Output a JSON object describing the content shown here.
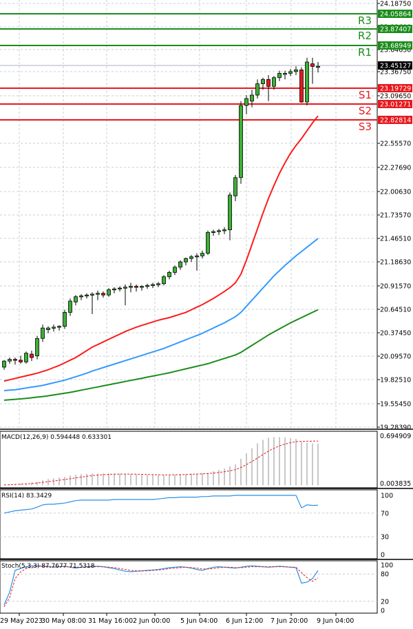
{
  "chart_data": {
    "type": "candlestick",
    "price_axis": {
      "tick_labels": [
        "24.18750",
        "23.91600",
        "23.64630",
        "23.36750",
        "23.09650",
        "22.55570",
        "22.27690",
        "22.00630",
        "21.73570",
        "21.46510",
        "21.18630",
        "20.91570",
        "20.64510",
        "20.37450",
        "20.09570",
        "19.82510",
        "19.55450",
        "19.28390"
      ],
      "current_price": "23.45127"
    },
    "time_axis": [
      "29 May 2023",
      "30 May 08:00",
      "31 May 16:00",
      "2 Jun 00:00",
      "5 Jun 04:00",
      "6 Jun 12:00",
      "7 Jun 20:00",
      "9 Jun 04:00"
    ],
    "levels": [
      {
        "name": "R3",
        "value": "24.05864",
        "kind": "resistance",
        "price": 24.05864
      },
      {
        "name": "R2",
        "value": "23.87407",
        "kind": "resistance",
        "price": 23.87407
      },
      {
        "name": "R1",
        "value": "23.68949",
        "kind": "resistance",
        "price": 23.68949
      },
      {
        "name": "S1",
        "value": "23.19729",
        "kind": "support",
        "price": 23.19729
      },
      {
        "name": "S2",
        "value": "23.01271",
        "kind": "support",
        "price": 23.01271
      },
      {
        "name": "S3",
        "value": "22.82814",
        "kind": "support",
        "price": 22.82814
      }
    ],
    "candles": [
      {
        "o": 19.99,
        "h": 20.07,
        "l": 19.96,
        "c": 20.06
      },
      {
        "o": 20.06,
        "h": 20.1,
        "l": 20.03,
        "c": 20.08
      },
      {
        "o": 20.08,
        "h": 20.1,
        "l": 20.02,
        "c": 20.07
      },
      {
        "o": 20.07,
        "h": 20.12,
        "l": 20.03,
        "c": 20.05
      },
      {
        "o": 20.05,
        "h": 20.17,
        "l": 20.03,
        "c": 20.15
      },
      {
        "o": 20.14,
        "h": 20.18,
        "l": 20.06,
        "c": 20.1
      },
      {
        "o": 20.12,
        "h": 20.35,
        "l": 20.08,
        "c": 20.32
      },
      {
        "o": 20.32,
        "h": 20.48,
        "l": 20.28,
        "c": 20.44
      },
      {
        "o": 20.42,
        "h": 20.46,
        "l": 20.38,
        "c": 20.44
      },
      {
        "o": 20.44,
        "h": 20.48,
        "l": 20.4,
        "c": 20.45
      },
      {
        "o": 20.45,
        "h": 20.47,
        "l": 20.41,
        "c": 20.46
      },
      {
        "o": 20.46,
        "h": 20.65,
        "l": 20.43,
        "c": 20.62
      },
      {
        "o": 20.62,
        "h": 20.78,
        "l": 20.58,
        "c": 20.75
      },
      {
        "o": 20.74,
        "h": 20.82,
        "l": 20.7,
        "c": 20.8
      },
      {
        "o": 20.8,
        "h": 20.83,
        "l": 20.76,
        "c": 20.81
      },
      {
        "o": 20.81,
        "h": 20.84,
        "l": 20.78,
        "c": 20.82
      },
      {
        "o": 20.82,
        "h": 20.85,
        "l": 20.6,
        "c": 20.83
      },
      {
        "o": 20.83,
        "h": 20.87,
        "l": 20.76,
        "c": 20.84
      },
      {
        "o": 20.84,
        "h": 20.86,
        "l": 20.79,
        "c": 20.82
      },
      {
        "o": 20.82,
        "h": 20.9,
        "l": 20.8,
        "c": 20.88
      },
      {
        "o": 20.88,
        "h": 20.91,
        "l": 20.84,
        "c": 20.89
      },
      {
        "o": 20.89,
        "h": 20.92,
        "l": 20.86,
        "c": 20.9
      },
      {
        "o": 20.9,
        "h": 20.94,
        "l": 20.7,
        "c": 20.91
      },
      {
        "o": 20.91,
        "h": 20.96,
        "l": 20.85,
        "c": 20.92
      },
      {
        "o": 20.92,
        "h": 20.94,
        "l": 20.86,
        "c": 20.91
      },
      {
        "o": 20.91,
        "h": 20.93,
        "l": 20.87,
        "c": 20.92
      },
      {
        "o": 20.92,
        "h": 20.95,
        "l": 20.89,
        "c": 20.93
      },
      {
        "o": 20.93,
        "h": 20.96,
        "l": 20.9,
        "c": 20.94
      },
      {
        "o": 20.94,
        "h": 20.97,
        "l": 20.91,
        "c": 20.95
      },
      {
        "o": 20.95,
        "h": 21.05,
        "l": 20.93,
        "c": 21.03
      },
      {
        "o": 21.03,
        "h": 21.1,
        "l": 21.0,
        "c": 21.08
      },
      {
        "o": 21.08,
        "h": 21.16,
        "l": 21.05,
        "c": 21.14
      },
      {
        "o": 21.14,
        "h": 21.22,
        "l": 21.11,
        "c": 21.2
      },
      {
        "o": 21.2,
        "h": 21.25,
        "l": 21.16,
        "c": 21.24
      },
      {
        "o": 21.24,
        "h": 21.28,
        "l": 21.2,
        "c": 21.26
      },
      {
        "o": 21.26,
        "h": 21.3,
        "l": 21.1,
        "c": 21.27
      },
      {
        "o": 21.27,
        "h": 21.33,
        "l": 21.24,
        "c": 21.3
      },
      {
        "o": 21.3,
        "h": 21.56,
        "l": 21.28,
        "c": 21.54
      },
      {
        "o": 21.54,
        "h": 21.57,
        "l": 21.5,
        "c": 21.55
      },
      {
        "o": 21.55,
        "h": 21.58,
        "l": 21.51,
        "c": 21.56
      },
      {
        "o": 21.56,
        "h": 21.6,
        "l": 21.52,
        "c": 21.57
      },
      {
        "o": 21.57,
        "h": 22.0,
        "l": 21.45,
        "c": 21.97
      },
      {
        "o": 21.96,
        "h": 22.2,
        "l": 21.9,
        "c": 22.17
      },
      {
        "o": 22.17,
        "h": 23.05,
        "l": 22.1,
        "c": 23.0
      },
      {
        "o": 23.0,
        "h": 23.12,
        "l": 22.9,
        "c": 23.08
      },
      {
        "o": 23.05,
        "h": 23.18,
        "l": 22.98,
        "c": 23.12
      },
      {
        "o": 23.12,
        "h": 23.3,
        "l": 23.08,
        "c": 23.25
      },
      {
        "o": 23.25,
        "h": 23.32,
        "l": 23.18,
        "c": 23.3
      },
      {
        "o": 23.3,
        "h": 23.35,
        "l": 23.05,
        "c": 23.22
      },
      {
        "o": 23.22,
        "h": 23.34,
        "l": 23.18,
        "c": 23.32
      },
      {
        "o": 23.32,
        "h": 23.4,
        "l": 23.28,
        "c": 23.37
      },
      {
        "o": 23.36,
        "h": 23.4,
        "l": 23.3,
        "c": 23.37
      },
      {
        "o": 23.37,
        "h": 23.42,
        "l": 23.34,
        "c": 23.39
      },
      {
        "o": 23.39,
        "h": 23.45,
        "l": 23.35,
        "c": 23.41
      },
      {
        "o": 23.41,
        "h": 23.44,
        "l": 23.03,
        "c": 23.04
      },
      {
        "o": 23.04,
        "h": 23.55,
        "l": 23.0,
        "c": 23.5
      },
      {
        "o": 23.48,
        "h": 23.55,
        "l": 23.25,
        "c": 23.45
      },
      {
        "o": 23.45,
        "h": 23.5,
        "l": 23.38,
        "c": 23.45
      }
    ],
    "moving_averages": [
      {
        "color": "#ff1a1a",
        "values": [
          19.83,
          19.845,
          19.86,
          19.875,
          19.89,
          19.905,
          19.92,
          19.94,
          19.96,
          19.985,
          20.01,
          20.04,
          20.07,
          20.1,
          20.14,
          20.18,
          20.22,
          20.25,
          20.28,
          20.31,
          20.34,
          20.37,
          20.4,
          20.425,
          20.45,
          20.47,
          20.49,
          20.51,
          20.53,
          20.545,
          20.56,
          20.58,
          20.6,
          20.62,
          20.65,
          20.68,
          20.71,
          20.745,
          20.78,
          20.82,
          20.86,
          20.905,
          20.96,
          21.06,
          21.22,
          21.4,
          21.58,
          21.76,
          21.93,
          22.08,
          22.22,
          22.34,
          22.45,
          22.54,
          22.62,
          22.71,
          22.8,
          22.88
        ]
      },
      {
        "color": "#3399ff",
        "values": [
          19.72,
          19.725,
          19.73,
          19.74,
          19.75,
          19.76,
          19.77,
          19.78,
          19.795,
          19.81,
          19.825,
          19.84,
          19.86,
          19.88,
          19.9,
          19.92,
          19.945,
          19.965,
          19.985,
          20.005,
          20.025,
          20.045,
          20.065,
          20.085,
          20.105,
          20.125,
          20.145,
          20.165,
          20.185,
          20.205,
          20.23,
          20.255,
          20.28,
          20.305,
          20.33,
          20.355,
          20.38,
          20.41,
          20.44,
          20.47,
          20.5,
          20.535,
          20.57,
          20.62,
          20.69,
          20.76,
          20.83,
          20.9,
          20.97,
          21.04,
          21.1,
          21.16,
          21.215,
          21.27,
          21.32,
          21.37,
          21.42,
          21.47
        ]
      },
      {
        "color": "#1a8c1a",
        "values": [
          19.61,
          19.615,
          19.62,
          19.625,
          19.63,
          19.637,
          19.645,
          19.652,
          19.66,
          19.67,
          19.68,
          19.69,
          19.7,
          19.712,
          19.725,
          19.737,
          19.75,
          19.762,
          19.775,
          19.787,
          19.8,
          19.812,
          19.825,
          19.837,
          19.85,
          19.862,
          19.875,
          19.887,
          19.9,
          19.912,
          19.925,
          19.94,
          19.955,
          19.97,
          19.985,
          20.0,
          20.015,
          20.03,
          20.05,
          20.07,
          20.09,
          20.11,
          20.13,
          20.16,
          20.2,
          20.24,
          20.28,
          20.32,
          20.36,
          20.395,
          20.43,
          20.465,
          20.5,
          20.53,
          20.56,
          20.59,
          20.62,
          20.65
        ]
      }
    ],
    "macd": {
      "label": "MACD(12,26,9) 0.594448 0.633301",
      "axis_top": "0.694909",
      "axis_bottom": "0.003835",
      "histogram": [
        0.01,
        0.015,
        0.02,
        0.025,
        0.03,
        0.04,
        0.05,
        0.07,
        0.09,
        0.1,
        0.11,
        0.12,
        0.14,
        0.15,
        0.16,
        0.165,
        0.17,
        0.17,
        0.17,
        0.17,
        0.168,
        0.165,
        0.16,
        0.158,
        0.155,
        0.152,
        0.15,
        0.148,
        0.146,
        0.146,
        0.148,
        0.152,
        0.156,
        0.16,
        0.165,
        0.17,
        0.175,
        0.18,
        0.2,
        0.22,
        0.24,
        0.27,
        0.3,
        0.38,
        0.46,
        0.53,
        0.6,
        0.65,
        0.68,
        0.69,
        0.69,
        0.685,
        0.675,
        0.665,
        0.62,
        0.61,
        0.6,
        0.594
      ],
      "signal": [
        0.005,
        0.008,
        0.012,
        0.016,
        0.02,
        0.026,
        0.032,
        0.042,
        0.052,
        0.062,
        0.072,
        0.082,
        0.094,
        0.106,
        0.118,
        0.128,
        0.138,
        0.146,
        0.152,
        0.156,
        0.159,
        0.161,
        0.161,
        0.16,
        0.159,
        0.157,
        0.155,
        0.153,
        0.151,
        0.15,
        0.15,
        0.151,
        0.153,
        0.155,
        0.158,
        0.161,
        0.164,
        0.168,
        0.175,
        0.183,
        0.194,
        0.207,
        0.224,
        0.255,
        0.295,
        0.34,
        0.39,
        0.44,
        0.49,
        0.53,
        0.565,
        0.59,
        0.61,
        0.625,
        0.63,
        0.632,
        0.633,
        0.633
      ]
    },
    "rsi": {
      "label": "RSI(14) 83.3429",
      "levels": [
        "100",
        "70",
        "30",
        "0"
      ],
      "values": [
        70,
        72,
        74,
        75,
        76,
        77,
        80,
        84,
        85,
        85,
        86,
        87,
        89,
        91,
        92,
        92,
        92,
        92,
        92,
        92,
        93,
        93,
        93,
        93,
        93,
        93,
        93,
        93,
        94,
        95,
        96,
        96,
        97,
        97,
        97,
        97,
        98,
        98,
        99,
        99,
        99,
        99,
        100,
        100,
        100,
        100,
        100,
        100,
        100,
        100,
        100,
        100,
        100,
        100,
        79,
        84,
        83,
        83.3
      ]
    },
    "stoch": {
      "label": "Stoch(5,3,3) 87.7677 71.5318",
      "levels": [
        "100",
        "80",
        "20",
        "0"
      ],
      "main": [
        12,
        40,
        88,
        92,
        96,
        98,
        98,
        97,
        96,
        95,
        96,
        97,
        95,
        93,
        95,
        96,
        97,
        97,
        96,
        94,
        92,
        89,
        86,
        85,
        86,
        87,
        88,
        89,
        90,
        92,
        94,
        95,
        96,
        95,
        93,
        90,
        88,
        92,
        95,
        96,
        95,
        94,
        93,
        95,
        97,
        98,
        97,
        96,
        95,
        96,
        97,
        96,
        95,
        94,
        60,
        62,
        70,
        87.8
      ],
      "signal": [
        8,
        28,
        70,
        85,
        92,
        95,
        97,
        97,
        97,
        96,
        96,
        96,
        96,
        95,
        95,
        95,
        96,
        96,
        96,
        95,
        94,
        92,
        90,
        88,
        87,
        87,
        87,
        88,
        89,
        90,
        92,
        93,
        94,
        95,
        94,
        93,
        91,
        91,
        92,
        94,
        95,
        95,
        94,
        94,
        95,
        96,
        96,
        96,
        96,
        96,
        96,
        96,
        95,
        95,
        83,
        72,
        64,
        71.5
      ]
    }
  }
}
